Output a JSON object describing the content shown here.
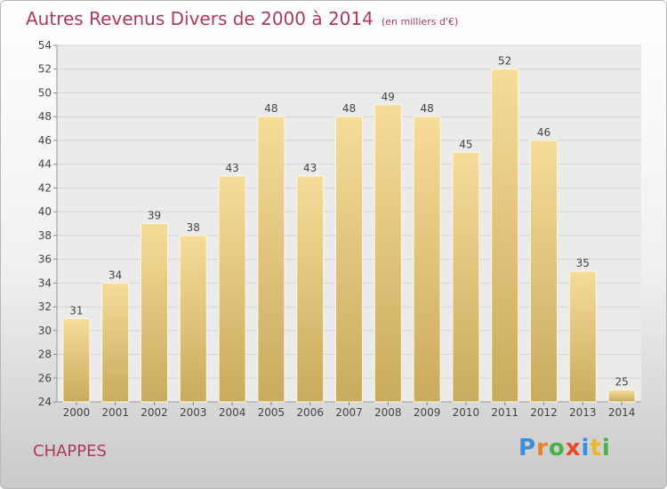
{
  "header": {
    "title": "Autres Revenus Divers de 2000 à 2014",
    "subtitle": "(en milliers d'€)"
  },
  "commune": "CHAPPES",
  "logo": {
    "text": "Proxiti",
    "letter_colors": [
      "#3a8fd8",
      "#e8822a",
      "#4ab04a",
      "#e84a2a",
      "#3a8fd8",
      "#e8b82a",
      "#4ab04a"
    ]
  },
  "colors": {
    "bar_light": "#f6dc99",
    "bar_dark": "#c9ab5e",
    "title": "#b0395a",
    "grid": "#d4d4d4"
  },
  "chart_data": {
    "type": "bar",
    "categories": [
      "2000",
      "2001",
      "2002",
      "2003",
      "2004",
      "2005",
      "2006",
      "2007",
      "2008",
      "2009",
      "2010",
      "2011",
      "2012",
      "2013",
      "2014"
    ],
    "values": [
      31,
      34,
      39,
      38,
      43,
      48,
      43,
      48,
      49,
      48,
      45,
      52,
      46,
      35,
      25
    ],
    "ylim": [
      24,
      54
    ],
    "yticks": [
      24,
      26,
      28,
      30,
      32,
      34,
      36,
      38,
      40,
      42,
      44,
      46,
      48,
      50,
      52,
      54
    ],
    "grid": true
  }
}
